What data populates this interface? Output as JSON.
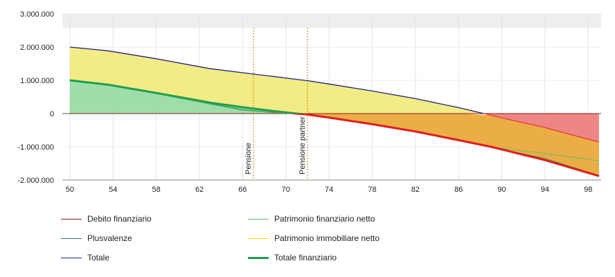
{
  "chart_data": {
    "type": "area",
    "xlabel": "",
    "ylabel": "",
    "xlim": [
      49.3,
      99.2
    ],
    "ylim": [
      -2000000,
      3000000
    ],
    "x_ticks": [
      "50",
      "54",
      "58",
      "62",
      "66",
      "70",
      "74",
      "78",
      "82",
      "86",
      "90",
      "94",
      "98"
    ],
    "y_ticks": [
      "3.000.000",
      "2.000.000",
      "1.000.000",
      "0",
      "-1.000.000",
      "-2.000.000"
    ],
    "grid": true,
    "legend_position": "bottom",
    "vertical_markers": [
      {
        "label": "Pensione",
        "x": 67,
        "color": "#b8860b"
      },
      {
        "label": "Pensione partner",
        "x": 72,
        "color": "#b8860b"
      }
    ],
    "x": [
      50,
      53.5,
      58,
      63,
      66,
      69,
      71,
      72,
      74,
      78,
      82,
      86,
      89,
      90,
      94,
      99
    ],
    "series": [
      {
        "name": "Debito finanziario",
        "color": "#8b1a1a",
        "values": [
          0,
          0,
          0,
          0,
          0,
          0,
          0,
          0,
          0,
          0,
          0,
          0,
          0,
          0,
          0,
          0
        ]
      },
      {
        "name": "Patrimonio finanziario netto",
        "color": "#66bb6a",
        "values": [
          1000000,
          850000,
          600000,
          280000,
          100000,
          20000,
          0,
          -20000,
          -100000,
          -300000,
          -520000,
          -780000,
          -990000,
          -1050000,
          -1200000,
          -1420000
        ]
      },
      {
        "name": "Plusvalenze",
        "color": "#2e8b57",
        "values": [
          1000000,
          870000,
          620000,
          300000,
          120000,
          30000,
          0,
          -20000,
          -100000,
          -300000,
          -520000,
          -780000,
          -990000,
          -1080000,
          -1350000,
          -1860000
        ]
      },
      {
        "name": "Patrimonio immobiliare netto",
        "color": "#f2e200",
        "values": [
          1000000,
          1020000,
          1030000,
          1040000,
          1050000,
          1050000,
          1050000,
          1050000,
          1030000,
          1000000,
          990000,
          980000,
          950000,
          930000,
          930000,
          1000000
        ]
      },
      {
        "name": "Totale",
        "color": "#1a237e",
        "values": [
          2000000,
          1890000,
          1650000,
          1350000,
          1230000,
          1110000,
          1030000,
          990000,
          890000,
          680000,
          450000,
          180000,
          -50000,
          -130000,
          -420000,
          -860000
        ]
      },
      {
        "name": "Totale finanziario",
        "color": "#1e9e4e",
        "emphasis": true,
        "values": [
          1000000,
          870000,
          620000,
          330000,
          190000,
          70000,
          0,
          -30000,
          -120000,
          -320000,
          -540000,
          -800000,
          -1000000,
          -1080000,
          -1400000,
          -1880000
        ]
      }
    ]
  }
}
